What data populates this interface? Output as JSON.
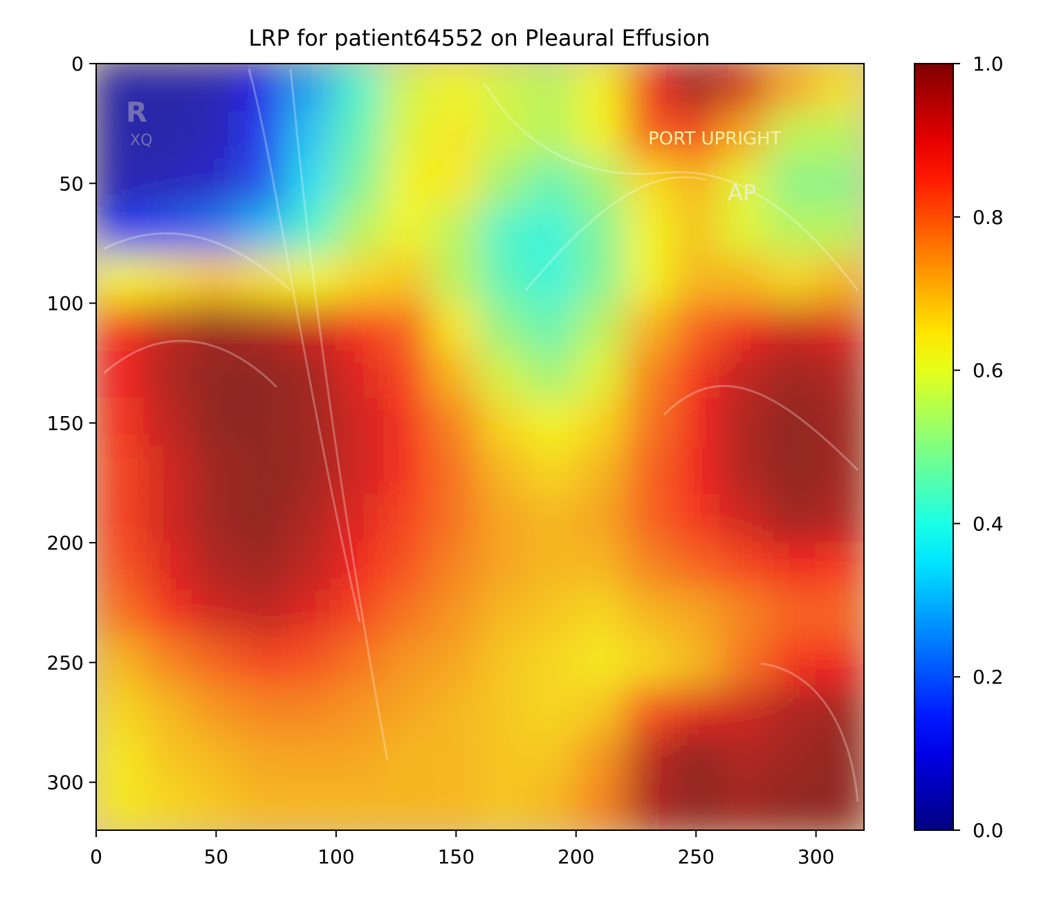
{
  "chart_data": {
    "type": "heatmap",
    "title": "LRP for patient64552 on Pleaural Effusion",
    "xlabel": "",
    "ylabel": "",
    "xlim": [
      0,
      320
    ],
    "ylim": [
      320,
      0
    ],
    "x_ticks": [
      0,
      50,
      100,
      150,
      200,
      250,
      300
    ],
    "y_ticks": [
      0,
      50,
      100,
      150,
      200,
      250,
      300
    ],
    "colormap": "jet",
    "colorbar": {
      "min": 0.0,
      "max": 1.0,
      "ticks": [
        "0.0",
        "0.2",
        "0.4",
        "0.6",
        "0.8",
        "1.0"
      ]
    },
    "image_annotations": [
      "R",
      "XQ",
      "PORT UPRIGHT",
      "AP"
    ],
    "grid": false,
    "heat_grid": {
      "rows": 16,
      "cols": 16,
      "cell_size": 20,
      "values": [
        [
          0.04,
          0.04,
          0.05,
          0.12,
          0.28,
          0.42,
          0.58,
          0.62,
          0.58,
          0.55,
          0.62,
          0.88,
          0.98,
          0.92,
          0.72,
          0.65
        ],
        [
          0.04,
          0.04,
          0.06,
          0.15,
          0.32,
          0.45,
          0.6,
          0.64,
          0.58,
          0.55,
          0.62,
          0.8,
          0.84,
          0.72,
          0.56,
          0.55
        ],
        [
          0.05,
          0.06,
          0.08,
          0.18,
          0.35,
          0.48,
          0.62,
          0.64,
          0.52,
          0.45,
          0.52,
          0.65,
          0.7,
          0.6,
          0.5,
          0.5
        ],
        [
          0.15,
          0.18,
          0.22,
          0.3,
          0.42,
          0.55,
          0.62,
          0.55,
          0.42,
          0.4,
          0.48,
          0.62,
          0.68,
          0.6,
          0.55,
          0.55
        ],
        [
          0.62,
          0.65,
          0.68,
          0.65,
          0.62,
          0.66,
          0.68,
          0.55,
          0.44,
          0.4,
          0.48,
          0.62,
          0.7,
          0.7,
          0.66,
          0.7
        ],
        [
          0.86,
          0.94,
          0.98,
          0.96,
          0.92,
          0.86,
          0.8,
          0.64,
          0.5,
          0.45,
          0.55,
          0.7,
          0.8,
          0.88,
          0.92,
          0.9
        ],
        [
          0.88,
          0.96,
          1.0,
          1.0,
          0.98,
          0.9,
          0.84,
          0.7,
          0.58,
          0.52,
          0.6,
          0.76,
          0.86,
          0.94,
          0.98,
          0.96
        ],
        [
          0.86,
          0.94,
          1.0,
          1.0,
          0.98,
          0.92,
          0.86,
          0.76,
          0.66,
          0.62,
          0.66,
          0.78,
          0.88,
          0.96,
          1.0,
          0.98
        ],
        [
          0.84,
          0.92,
          0.98,
          1.0,
          0.98,
          0.92,
          0.86,
          0.78,
          0.7,
          0.66,
          0.7,
          0.8,
          0.88,
          0.96,
          1.0,
          0.98
        ],
        [
          0.84,
          0.92,
          0.98,
          1.0,
          0.96,
          0.9,
          0.84,
          0.78,
          0.72,
          0.7,
          0.72,
          0.8,
          0.86,
          0.92,
          0.98,
          0.96
        ],
        [
          0.82,
          0.9,
          0.96,
          0.98,
          0.94,
          0.88,
          0.82,
          0.76,
          0.72,
          0.7,
          0.7,
          0.76,
          0.8,
          0.84,
          0.88,
          0.86
        ],
        [
          0.78,
          0.86,
          0.92,
          0.94,
          0.9,
          0.84,
          0.78,
          0.74,
          0.7,
          0.68,
          0.66,
          0.7,
          0.72,
          0.76,
          0.8,
          0.8
        ],
        [
          0.7,
          0.76,
          0.8,
          0.84,
          0.82,
          0.78,
          0.74,
          0.72,
          0.68,
          0.66,
          0.64,
          0.66,
          0.7,
          0.78,
          0.86,
          0.88
        ],
        [
          0.66,
          0.7,
          0.74,
          0.76,
          0.76,
          0.74,
          0.72,
          0.7,
          0.68,
          0.66,
          0.68,
          0.82,
          0.9,
          0.92,
          0.96,
          0.98
        ],
        [
          0.64,
          0.68,
          0.7,
          0.72,
          0.72,
          0.72,
          0.7,
          0.7,
          0.68,
          0.68,
          0.74,
          0.94,
          1.0,
          0.96,
          0.98,
          1.0
        ],
        [
          0.64,
          0.66,
          0.68,
          0.7,
          0.7,
          0.7,
          0.7,
          0.7,
          0.68,
          0.7,
          0.76,
          0.96,
          1.0,
          0.98,
          1.0,
          1.0
        ]
      ]
    }
  }
}
